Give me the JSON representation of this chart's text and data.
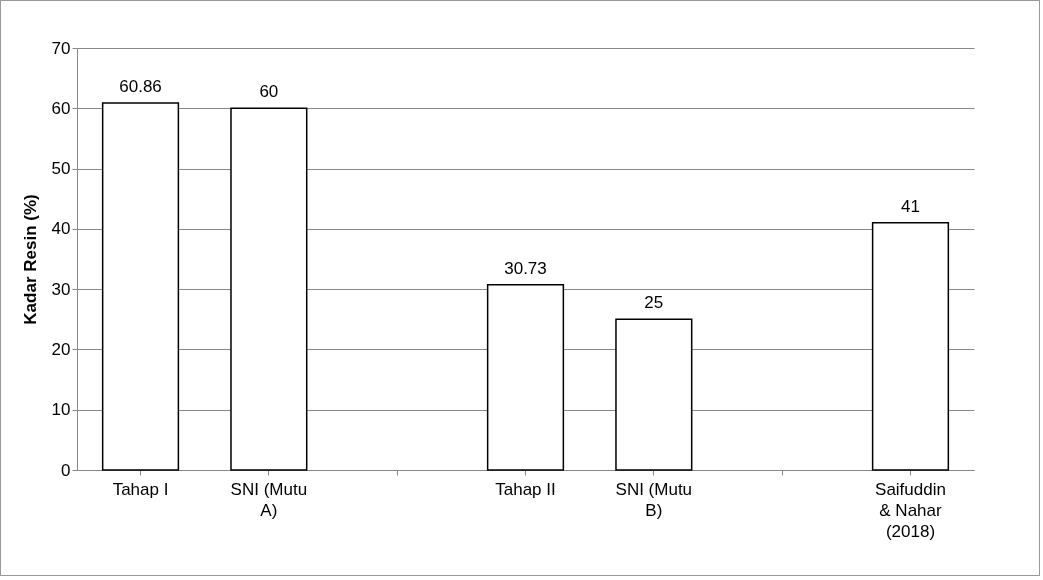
{
  "chart_data": {
    "type": "bar",
    "ylabel": "Kadar Resin (%)",
    "categories": [
      "Tahap I",
      "SNI (Mutu A)",
      null,
      "Tahap II",
      "SNI (Mutu B)",
      null,
      "Saifuddin & Nahar (2018)"
    ],
    "values": [
      60.86,
      60,
      null,
      30.73,
      25,
      null,
      41
    ],
    "color": "#ffffff",
    "ylim": [
      0,
      70
    ],
    "yticks": [
      0,
      10,
      20,
      30,
      40,
      50,
      60,
      70
    ],
    "grid": "y",
    "data_labels": true
  }
}
